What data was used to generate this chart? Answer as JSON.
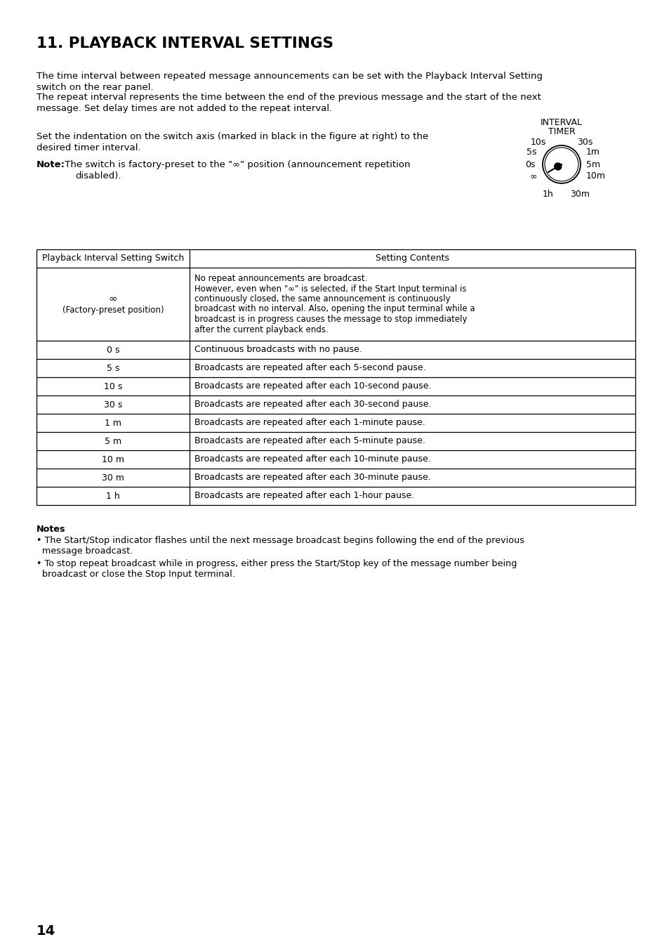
{
  "title": "11. PLAYBACK INTERVAL SETTINGS",
  "intro_para1_line1": "The time interval between repeated message announcements can be set with the Playback Interval Setting",
  "intro_para1_line2": "switch on the rear panel.",
  "intro_para2_line1": "The repeat interval represents the time between the end of the previous message and the start of the next",
  "intro_para2_line2": "message. Set delay times are not added to the repeat interval.",
  "set_line1": "Set the indentation on the switch axis (marked in black in the figure at right) to the",
  "set_line2": "desired timer interval.",
  "note_bold": "Note:",
  "note_rest_line1": " The switch is factory-preset to the \"∞\" position (announcement repetition",
  "note_indent_line2": "disabled).",
  "interval_title_line1": "INTERVAL",
  "interval_title_line2": "TIMER",
  "table_header_col1": "Playback Interval Setting Switch",
  "table_header_col2": "Setting Contents",
  "table_rows": [
    {
      "switch_line1": "∞",
      "switch_line2": "(Factory-preset position)",
      "content_lines": [
        "No repeat announcements are broadcast.",
        "However, even when \"∞\" is selected, if the Start Input terminal is",
        "continuously closed, the same announcement is continuously",
        "broadcast with no interval. Also, opening the input terminal while a",
        "broadcast is in progress causes the message to stop immediately",
        "after the current playback ends."
      ]
    },
    {
      "switch": "0 s",
      "content": "Continuous broadcasts with no pause."
    },
    {
      "switch": "5 s",
      "content": "Broadcasts are repeated after each 5-second pause."
    },
    {
      "switch": "10 s",
      "content": "Broadcasts are repeated after each 10-second pause."
    },
    {
      "switch": "30 s",
      "content": "Broadcasts are repeated after each 30-second pause."
    },
    {
      "switch": "1 m",
      "content": "Broadcasts are repeated after each 1-minute pause."
    },
    {
      "switch": "5 m",
      "content": "Broadcasts are repeated after each 5-minute pause."
    },
    {
      "switch": "10 m",
      "content": "Broadcasts are repeated after each 10-minute pause."
    },
    {
      "switch": "30 m",
      "content": "Broadcasts are repeated after each 30-minute pause."
    },
    {
      "switch": "1 h",
      "content": "Broadcasts are repeated after each 1-hour pause."
    }
  ],
  "notes_title": "Notes",
  "note1_line1": "• The Start/Stop indicator flashes until the next message broadcast begins following the end of the previous",
  "note1_line2": "  message broadcast.",
  "note2_line1": "• To stop repeat broadcast while in progress, either press the Start/Stop key of the message number being",
  "note2_line2": "  broadcast or close the Stop Input terminal.",
  "page_number": "14",
  "bg_color": "#ffffff",
  "text_color": "#000000"
}
